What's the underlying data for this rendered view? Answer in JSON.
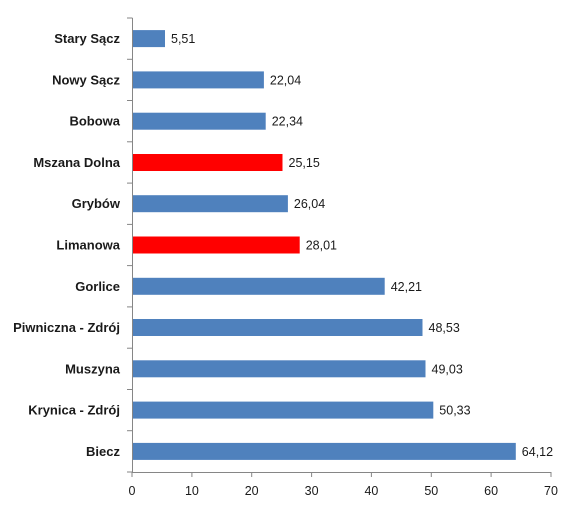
{
  "chart_data": {
    "type": "bar",
    "orientation": "horizontal",
    "categories": [
      "Stary Sącz",
      "Nowy Sącz",
      "Bobowa",
      "Mszana Dolna",
      "Grybów",
      "Limanowa",
      "Gorlice",
      "Piwniczna - Zdrój",
      "Muszyna",
      "Krynica - Zdrój",
      "Biecz"
    ],
    "values": [
      5.51,
      22.04,
      22.34,
      25.15,
      26.04,
      28.01,
      42.21,
      48.53,
      49.03,
      50.33,
      64.12
    ],
    "value_labels": [
      "5,51",
      "22,04",
      "22,34",
      "25,15",
      "26,04",
      "28,01",
      "42,21",
      "48,53",
      "49,03",
      "50,33",
      "64,12"
    ],
    "highlighted": [
      "Mszana Dolna",
      "Limanowa"
    ],
    "xlim": [
      0,
      70
    ],
    "xticks": [
      0,
      10,
      20,
      30,
      40,
      50,
      60,
      70
    ],
    "grid": false,
    "legend": "none",
    "colors": {
      "default": "#4f81bd",
      "highlight": "#ff0000",
      "axis": "#868686"
    }
  }
}
